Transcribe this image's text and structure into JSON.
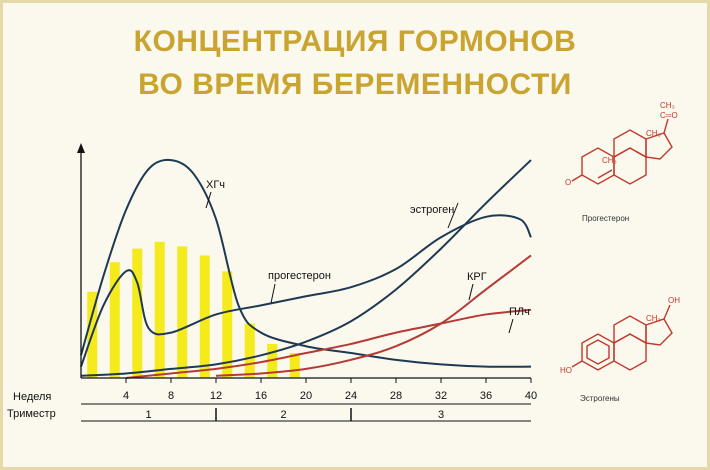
{
  "title_line1": "КОНЦЕНТРАЦИЯ ГОРМОНОВ",
  "title_line2": "ВО ВРЕМЯ БЕРЕМЕННОСТИ",
  "colors": {
    "title": "#c9a430",
    "dark": "#1e3a52",
    "red": "#b53a36",
    "bars": "#f5ea1c",
    "chem": "#c0392b"
  },
  "chart_data": {
    "type": "line",
    "xlabel": "Неделя",
    "x_ticks": [
      "4",
      "8",
      "12",
      "16",
      "20",
      "24",
      "28",
      "32",
      "36",
      "40"
    ],
    "trimester_label": "Триместр",
    "trimesters": [
      "1",
      "2",
      "3"
    ],
    "series": [
      {
        "name": "ХГч",
        "style": "dark",
        "x": [
          0,
          2,
          4,
          6,
          8,
          10,
          12,
          14,
          16,
          20,
          24,
          28,
          32,
          36,
          40
        ],
        "y": [
          10,
          45,
          74,
          92,
          96,
          90,
          70,
          32,
          20,
          14,
          11,
          8,
          6,
          5,
          5
        ]
      },
      {
        "name": "эстроген",
        "style": "dark",
        "x": [
          0,
          4,
          8,
          12,
          16,
          20,
          24,
          28,
          32,
          36,
          40
        ],
        "y": [
          1,
          2,
          4,
          6,
          10,
          16,
          25,
          39,
          57,
          77,
          96
        ]
      },
      {
        "name": "прогестерон",
        "style": "dark",
        "x": [
          0,
          2,
          4,
          5,
          6,
          8,
          12,
          16,
          20,
          24,
          28,
          32,
          36,
          39,
          40
        ],
        "y": [
          5,
          32,
          47,
          42,
          22,
          20,
          28,
          32,
          36,
          40,
          48,
          62,
          71,
          70,
          62
        ]
      },
      {
        "name": "КРГ",
        "style": "red",
        "x": [
          12,
          16,
          20,
          24,
          28,
          32,
          36,
          40
        ],
        "y": [
          1,
          2,
          4,
          8,
          14,
          24,
          39,
          54
        ]
      },
      {
        "name": "ПЛч",
        "style": "red",
        "x": [
          4,
          8,
          12,
          16,
          20,
          24,
          28,
          32,
          36,
          40
        ],
        "y": [
          0,
          2,
          4,
          7,
          11,
          15,
          20,
          24,
          28,
          30
        ]
      },
      {
        "name": "bars",
        "style": "bars",
        "x": [
          1,
          3,
          5,
          7,
          9,
          11,
          13,
          15,
          17,
          19
        ],
        "y": [
          38,
          51,
          57,
          60,
          58,
          54,
          47,
          24,
          15,
          11
        ]
      }
    ],
    "bars_y_scale_note": ""
  },
  "molecules": [
    {
      "caption": "Прогестерон",
      "labels": {
        "ch3_top": "CH₃",
        "co": "C═O",
        "ch3_d": "CH₃",
        "ch3_c": "CH₃",
        "o": "O"
      }
    },
    {
      "caption": "Эстрогены",
      "labels": {
        "oh": "OH",
        "ch3": "CH₃",
        "ho": "HO"
      }
    }
  ]
}
